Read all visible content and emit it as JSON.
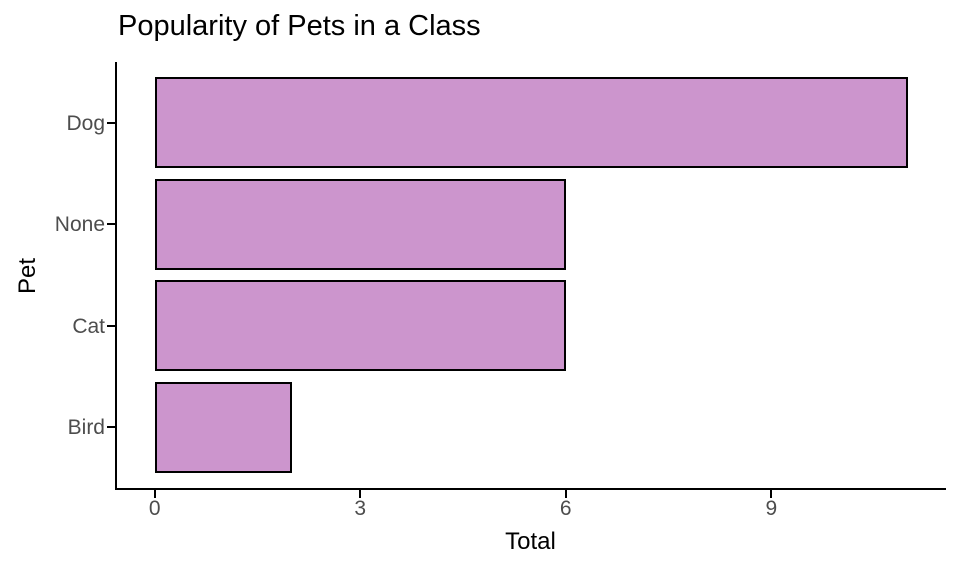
{
  "chart_data": {
    "type": "bar",
    "orientation": "horizontal",
    "title": "Popularity of Pets in a Class",
    "xlabel": "Total",
    "ylabel": "Pet",
    "categories": [
      "Dog",
      "None",
      "Cat",
      "Bird"
    ],
    "values": [
      11,
      6,
      6,
      2
    ],
    "x_ticks": [
      0,
      3,
      6,
      9
    ],
    "x_range": [
      -0.55,
      11.55
    ],
    "y_range": [
      0.4,
      4.6
    ],
    "bar_thickness_units": 0.9,
    "grid": "off",
    "legend": "none",
    "colors": {
      "bar_fill": "#CC95CD",
      "bar_border": "#000000",
      "axis_line": "#000000",
      "tick_label": "#4d4d4d",
      "title_text": "#000000"
    }
  }
}
